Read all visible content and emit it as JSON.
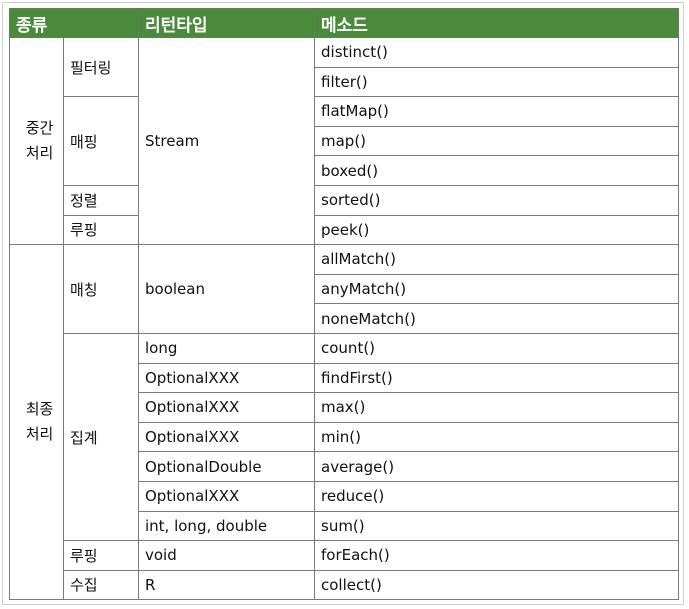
{
  "header": {
    "col_kind": "종류",
    "col_return": "리턴타입",
    "col_method": "메소드"
  },
  "sections": {
    "intermediate": {
      "label": "중간처리"
    },
    "terminal": {
      "label": "최종처리"
    }
  },
  "groups": {
    "filtering": "필터링",
    "mapping": "매핑",
    "sorting": "정렬",
    "looping1": "루핑",
    "matching": "매칭",
    "aggregation": "집계",
    "looping2": "루핑",
    "collecting": "수집"
  },
  "returns": {
    "stream": "Stream",
    "boolean": "boolean",
    "r0": "long",
    "r1": "OptionalXXX",
    "r2": "OptionalXXX",
    "r3": "OptionalXXX",
    "r4": "OptionalDouble",
    "r5": "OptionalXXX",
    "r6": "int, long, double",
    "void": "void",
    "R": "R"
  },
  "methods": [
    "distinct()",
    "filter()",
    "flatMap()",
    "map()",
    "boxed()",
    "sorted()",
    "peek()",
    "allMatch()",
    "anyMatch()",
    "noneMatch()",
    "count()",
    "findFirst()",
    "max()",
    "min()",
    "average()",
    "reduce()",
    "sum()",
    "forEach()",
    "collect()"
  ]
}
